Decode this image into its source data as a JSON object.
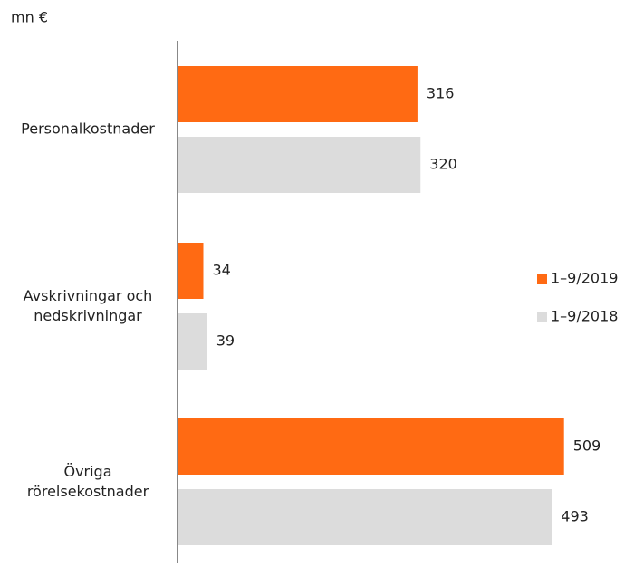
{
  "chart_data": {
    "type": "hbar",
    "y_axis_label": "mn €",
    "categories": [
      "Personalkostnader",
      "Avskrivningar och\nnedskrivningar",
      "Övriga\nrörelsekostnader"
    ],
    "series": [
      {
        "name": "1–9/2019",
        "color": "#ff6a13",
        "values": [
          316,
          34,
          509
        ]
      },
      {
        "name": "1–9/2018",
        "color": "#dcdcdc",
        "values": [
          320,
          39,
          493
        ]
      }
    ],
    "xlim": [
      0,
      600
    ],
    "legend": "right"
  }
}
